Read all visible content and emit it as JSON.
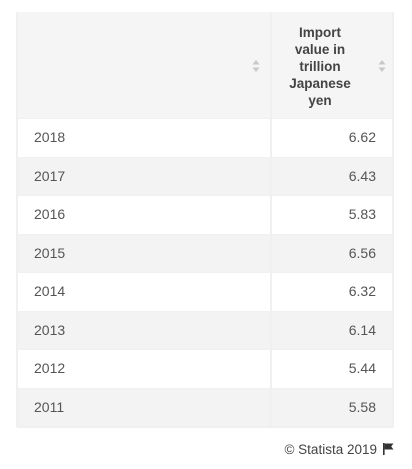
{
  "chart_data": {
    "type": "table",
    "columns": [
      "",
      "Import value in trillion Japanese yen"
    ],
    "rows": [
      {
        "year": "2018",
        "value": "6.62"
      },
      {
        "year": "2017",
        "value": "6.43"
      },
      {
        "year": "2016",
        "value": "5.83"
      },
      {
        "year": "2015",
        "value": "6.56"
      },
      {
        "year": "2014",
        "value": "6.32"
      },
      {
        "year": "2013",
        "value": "6.14"
      },
      {
        "year": "2012",
        "value": "5.44"
      },
      {
        "year": "2011",
        "value": "5.58"
      }
    ]
  },
  "header": {
    "year_col": "",
    "value_col": "Import\nvalue in\ntrillion\nJapanese\nyen"
  },
  "footer": {
    "credit": "© Statista 2019",
    "flag_icon": "flag-icon"
  },
  "colors": {
    "header_bg": "#f5f5f5",
    "row_alt": "#f3f3f3",
    "text": "#555555"
  }
}
